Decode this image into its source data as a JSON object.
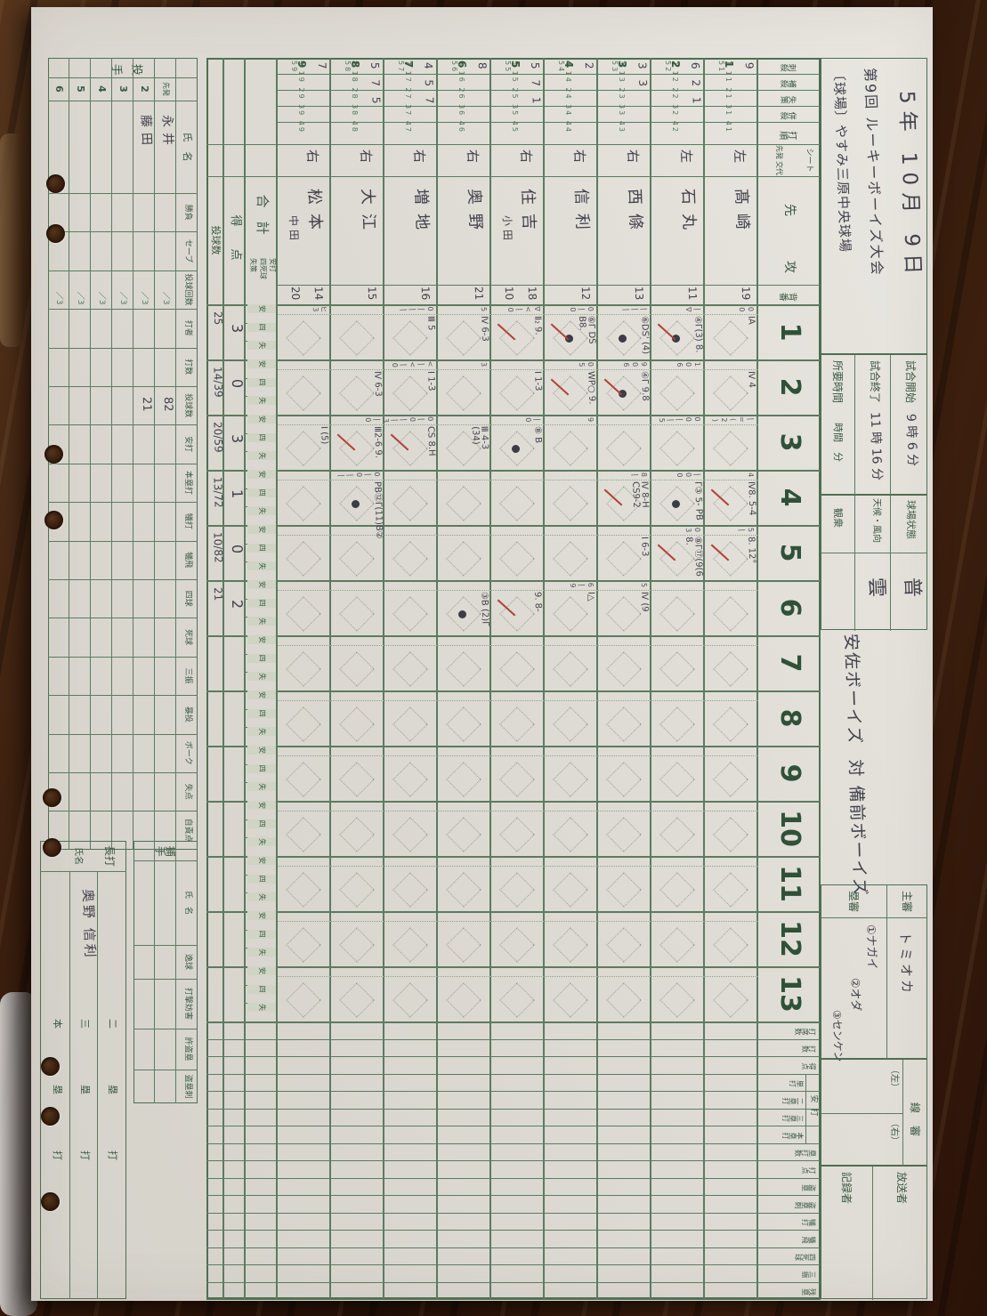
{
  "header": {
    "date": "5年 10月 9日",
    "title1": "第9回 ルーキーボーイズ大会",
    "title2": "〔球場〕やすみ三原中央球場",
    "times": [
      {
        "label": "試合開始",
        "value": "9 時 6 分"
      },
      {
        "label": "試合終了",
        "value": "11 時 16 分"
      },
      {
        "label": "所要時間",
        "value": "時間　分"
      }
    ],
    "conditions": [
      {
        "label": "球場状態",
        "value": "普"
      },
      {
        "label": "天候・風向",
        "value": "雲"
      },
      {
        "label": "観衆",
        "value": ""
      }
    ],
    "matchup": "安佐ボーイズ  対 備前ボーイズ",
    "umpires": {
      "chief_label": "主審",
      "chief": "トミオカ",
      "base_label": "塁審",
      "bases": [
        "①ナガイ",
        "②オダ",
        "③センケン"
      ],
      "line_label": "線審",
      "line_left": "（左）",
      "line_right": "（右）",
      "announcer_label": "放送者",
      "scorer_label": "記録者"
    }
  },
  "grid": {
    "stat_headers": [
      "刺殺",
      "補殺",
      "失策",
      "併殺"
    ],
    "order_header": "打順",
    "seat_header": "シート",
    "seat_sub": [
      "先発",
      "交代"
    ],
    "name_header": "先　攻",
    "number_header": "背番",
    "innings": [
      "1",
      "2",
      "3",
      "4",
      "5",
      "6",
      "7",
      "8",
      "9",
      "10",
      "11",
      "12",
      "13"
    ],
    "anda_group": "安打",
    "totals_headers": [
      "打席数",
      "打数",
      "得点",
      "単打",
      "二塁打",
      "三塁打",
      "本塁打",
      "塁打数",
      "打点",
      "盗塁",
      "盗塁刺",
      "犠打",
      "犠飛",
      "四死球",
      "三振",
      "残塁"
    ],
    "sum_label": "合　計",
    "sum_sub": [
      "安打",
      "四死球",
      "失策"
    ],
    "inning_mini": [
      "安",
      "四",
      "失"
    ],
    "score_label": "得　点",
    "pitch_label": "投球数"
  },
  "batters": [
    {
      "order": 1,
      "counts": "9",
      "pos": "左",
      "name": "髙崎",
      "name2": "",
      "no": "19",
      "no2": ""
    },
    {
      "order": 2,
      "counts": "6 2 1",
      "pos": "左",
      "name": "石丸",
      "name2": "",
      "no": "11",
      "no2": ""
    },
    {
      "order": 3,
      "counts": "3 3",
      "pos": "右",
      "name": "西條",
      "name2": "",
      "no": "13",
      "no2": ""
    },
    {
      "order": 4,
      "counts": "2",
      "pos": "右",
      "name": "信利",
      "name2": "",
      "no": "12",
      "no2": ""
    },
    {
      "order": 5,
      "counts": "5 7 1",
      "pos": "右",
      "name": "住吉",
      "name2": "小田",
      "no": "18",
      "no2": "10"
    },
    {
      "order": 6,
      "counts": "8",
      "pos": "右",
      "name": "奥野",
      "name2": "",
      "no": "21",
      "no2": ""
    },
    {
      "order": 7,
      "counts": "4 5 7",
      "pos": "右",
      "name": "増地",
      "name2": "",
      "no": "16",
      "no2": ""
    },
    {
      "order": 8,
      "counts": "5 7 5",
      "pos": "右",
      "name": "大江",
      "name2": "",
      "no": "15",
      "no2": ""
    },
    {
      "order": 9,
      "counts": "7",
      "pos": "右",
      "name": "松本",
      "name2": "中田",
      "no": "14",
      "no2": "20"
    }
  ],
  "score_row": [
    "3",
    "0",
    "3",
    "1",
    "0",
    "2",
    "",
    "",
    "",
    "",
    "",
    "",
    ""
  ],
  "pitch_row": [
    "25",
    "14/39",
    "20/59",
    "13/72",
    "10/82",
    "21",
    "",
    "",
    "",
    "",
    "",
    "",
    ""
  ],
  "marks": [
    {
      "b": 1,
      "i": 1,
      "t": "ⅠA"
    },
    {
      "b": 2,
      "i": 1,
      "t": "④Γ(3) 8.",
      "d": 1,
      "rs": 1
    },
    {
      "b": 3,
      "i": 1,
      "t": "⑥DS' (4)",
      "d": 1
    },
    {
      "b": 4,
      "i": 1,
      "t": "⑥Γ DS B8.",
      "d": 1,
      "rs": 1
    },
    {
      "b": 5,
      "i": 1,
      "t": "Ⅱ₂ 9.",
      "rs": 1
    },
    {
      "b": 6,
      "i": 1,
      "t": "Ⅳ 6-3"
    },
    {
      "b": 7,
      "i": 1,
      "t": "Ⅲ 5"
    },
    {
      "b": 1,
      "i": 2,
      "t": "Ⅳ 4"
    },
    {
      "b": 3,
      "i": 2,
      "t": "④Γ 9.8",
      "d": 1,
      "rs": 1
    },
    {
      "b": 4,
      "i": 2,
      "t": "WP○ 9.",
      "rs": 1
    },
    {
      "b": 5,
      "i": 2,
      "t": "Ⅰ 1-3"
    },
    {
      "b": 7,
      "i": 2,
      "t": "Ⅰ 1-3"
    },
    {
      "b": 8,
      "i": 2,
      "t": "Ⅳ 6-3"
    },
    {
      "b": 5,
      "i": 3,
      "t": "⑧ B",
      "d": 1
    },
    {
      "b": 6,
      "i": 3,
      "t": "Ⅲ 4-3 (34)"
    },
    {
      "b": 7,
      "i": 3,
      "t": "CS 8.H",
      "rs": 1
    },
    {
      "b": 8,
      "i": 3,
      "t": "Ⅲ2-6 9.",
      "rs": 1
    },
    {
      "b": 9,
      "i": 3,
      "t": "Ⅰ (5)"
    },
    {
      "b": 1,
      "i": 4,
      "t": "Ⅳ8. 5-4",
      "rs": 1
    },
    {
      "b": 2,
      "i": 4,
      "t": "Γ③ 5- PB",
      "d": 1
    },
    {
      "b": 3,
      "i": 4,
      "t": "Ⅳ 8-H CS9-2",
      "rs": 1
    },
    {
      "b": 8,
      "i": 4,
      "t": "PB⑫Γ(11)B②",
      "d": 1
    },
    {
      "b": 1,
      "i": 5,
      "t": "8. 12°",
      "rs": 1
    },
    {
      "b": 2,
      "i": 5,
      "t": "⑧Γ⑰(9(6 8.",
      "rs": 1
    },
    {
      "b": 3,
      "i": 5,
      "t": "Ⅰ 6-3"
    },
    {
      "b": 3,
      "i": 6,
      "t": "Ⅳ (9"
    },
    {
      "b": 4,
      "i": 6,
      "t": "Ⅰ△"
    },
    {
      "b": 5,
      "i": 6,
      "t": "9. 8-",
      "rs": 1
    },
    {
      "b": 6,
      "i": 6,
      "t": "③B (2)Γ",
      "d": 1
    }
  ],
  "tallies": [
    {
      "b": 1,
      "i": 1,
      "t": "00"
    },
    {
      "b": 2,
      "i": 1,
      "t": "|∇"
    },
    {
      "b": 3,
      "i": 1,
      "t": "|||"
    },
    {
      "b": 4,
      "i": 1,
      "t": "0|0"
    },
    {
      "b": 5,
      "i": 1,
      "t": "∇<|0"
    },
    {
      "b": 6,
      "i": 1,
      "t": "5"
    },
    {
      "b": 7,
      "i": 1,
      "t": "0|||"
    },
    {
      "b": 9,
      "i": 1,
      "t": "ヒ3"
    },
    {
      "b": 2,
      "i": 2,
      "t": "106"
    },
    {
      "b": 3,
      "i": 2,
      "t": "906"
    },
    {
      "b": 4,
      "i": 2,
      "t": "05"
    },
    {
      "b": 6,
      "i": 2,
      "t": "3"
    },
    {
      "b": 7,
      "i": 2,
      "t": "<|<|0"
    },
    {
      "b": 1,
      "i": 3,
      "t": "|=(2)"
    },
    {
      "b": 2,
      "i": 3,
      "t": "00||5"
    },
    {
      "b": 4,
      "i": 3,
      "t": "9"
    },
    {
      "b": 5,
      "i": 3,
      "t": "|0"
    },
    {
      "b": 7,
      "i": 3,
      "t": "0|0||3"
    },
    {
      "b": 8,
      "i": 3,
      "t": "|0"
    },
    {
      "b": 1,
      "i": 4,
      "t": "4"
    },
    {
      "b": 2,
      "i": 4,
      "t": "|00"
    },
    {
      "b": 3,
      "i": 4,
      "t": "8|"
    },
    {
      "b": 8,
      "i": 4,
      "t": "0|0||"
    },
    {
      "b": 1,
      "i": 5,
      "t": "5|"
    },
    {
      "b": 2,
      "i": 5,
      "t": "03"
    },
    {
      "b": 3,
      "i": 6,
      "t": "5"
    },
    {
      "b": 4,
      "i": 6,
      "t": "6|9"
    }
  ],
  "pitchers": {
    "label": "投手",
    "row_labels": [
      "先発",
      "2",
      "3",
      "4",
      "5",
      "6"
    ],
    "columns": [
      "氏　名",
      "勝負",
      "セーブ",
      "投球回数",
      "打者",
      "打数",
      "投球数",
      "安打",
      "本塁打",
      "犠打",
      "犠飛",
      "四球",
      "死球",
      "三振",
      "暴投",
      "ボーク",
      "失点",
      "自責点"
    ],
    "innings_preprint": "／3",
    "rows": [
      {
        "name": "永井",
        "pitches": "82"
      },
      {
        "name": "藤田",
        "pitches": "21"
      },
      {
        "name": "",
        "pitches": ""
      },
      {
        "name": "",
        "pitches": ""
      },
      {
        "name": "",
        "pitches": ""
      },
      {
        "name": "",
        "pitches": ""
      }
    ]
  },
  "catcher": {
    "label": "捕手",
    "columns": [
      "氏　名",
      "逸球",
      "打撃妨害",
      "許盗塁",
      "盗塁刺"
    ]
  },
  "longhits": {
    "label": "長打",
    "name_header": "氏名",
    "sections": [
      {
        "label": "二　塁　打",
        "names": ""
      },
      {
        "label": "三　塁　打",
        "names": "奥野 信利"
      },
      {
        "label": "本　塁　打",
        "names": ""
      }
    ]
  }
}
